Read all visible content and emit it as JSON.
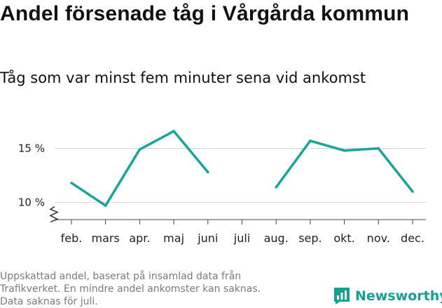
{
  "title": "Andel försenade tåg i Vårgårda kommun",
  "subtitle": "Tåg som var minst fem minuter sena vid ankomst",
  "footnote": [
    "Uppskattad andel, baserat på insamlad data från",
    "Trafikverket. En mindre andel ankomster kan saknas.",
    "Data saknas för juli."
  ],
  "brand": {
    "name": "Newsworthy",
    "icon": "bar-chart-icon",
    "color": "#15a08f"
  },
  "chart_data": {
    "type": "line",
    "categories": [
      "feb.",
      "mars",
      "apr.",
      "maj",
      "juni",
      "juli",
      "aug.",
      "sep.",
      "okt.",
      "nov.",
      "dec."
    ],
    "series": [
      {
        "values": [
          11.8,
          9.7,
          14.9,
          16.6,
          12.8,
          null,
          11.4,
          15.7,
          14.8,
          15.0,
          11.0
        ]
      }
    ],
    "yticks": [
      10,
      15
    ],
    "ytick_labels": [
      "10 %",
      "15 %"
    ],
    "ylim": [
      8.4,
      19.0
    ],
    "y_axis_break": true,
    "grid": true,
    "legend": "none",
    "line_color": "#18a595"
  }
}
